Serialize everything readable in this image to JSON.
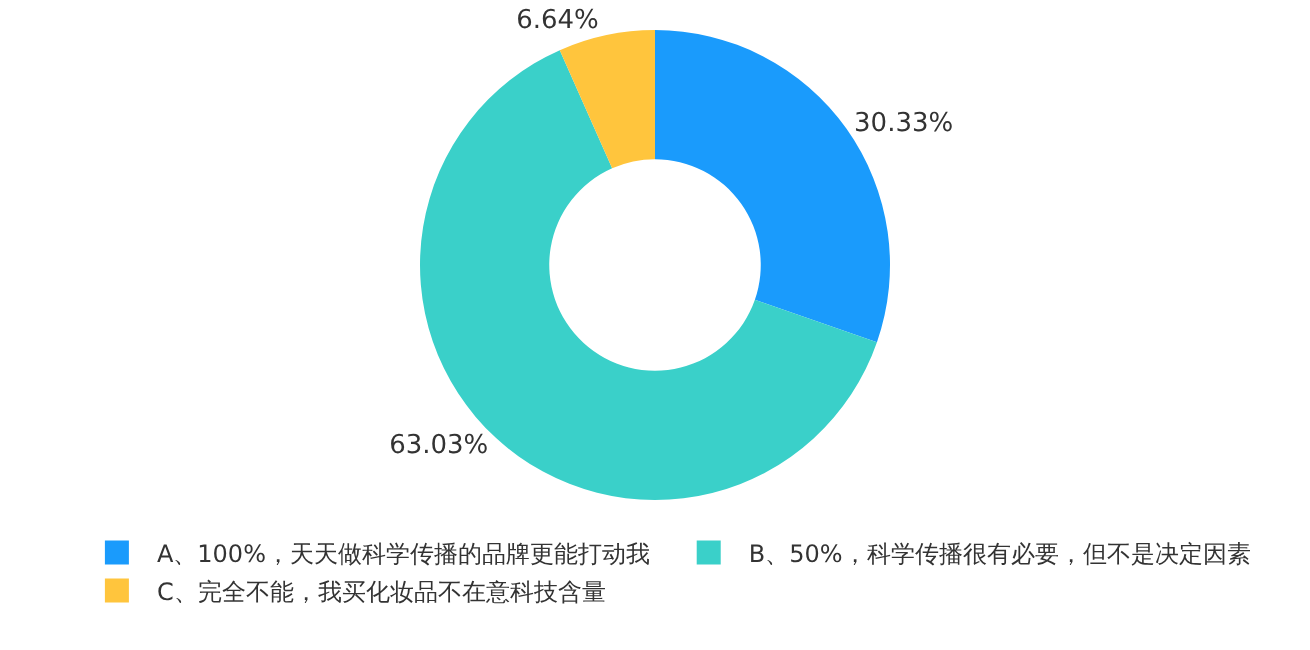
{
  "chart_data": {
    "type": "donut",
    "categories": [
      "A、100%，天天做科学传播的品牌更能打动我",
      "B、50%，科学传播很有必要，但不是决定因素",
      "C、完全不能，我买化妆品不在意科技含量"
    ],
    "values": [
      30.33,
      63.03,
      6.64
    ],
    "colors": [
      "#1a9bfc",
      "#3ad0c9",
      "#ffc53d"
    ],
    "value_labels": [
      "30.33%",
      "63.03%",
      "6.64%"
    ],
    "legend": "bottom"
  }
}
